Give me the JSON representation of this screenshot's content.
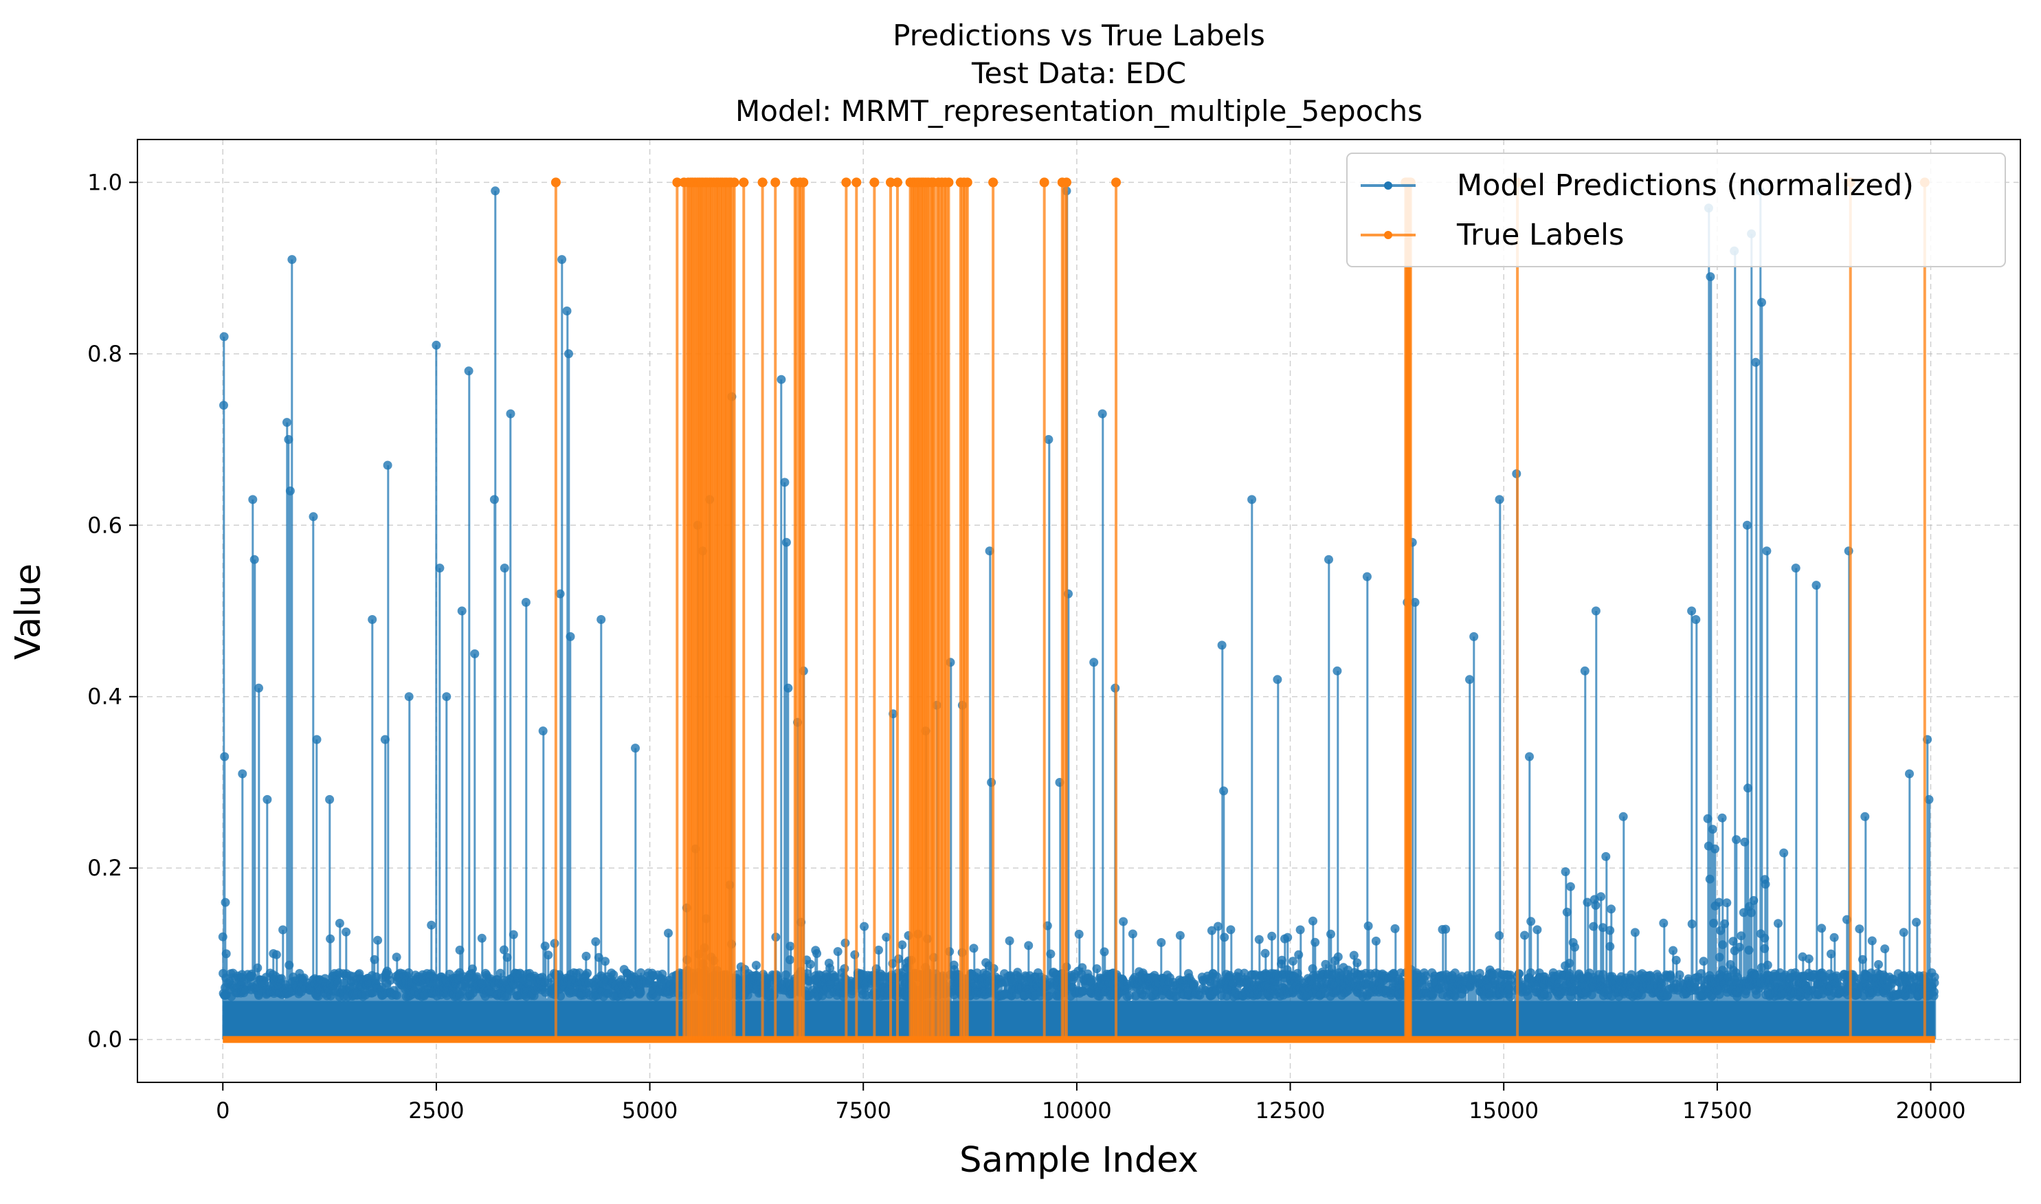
{
  "chart_data": {
    "type": "line",
    "title_lines": [
      "Predictions vs True Labels",
      "Test Data: EDC",
      "Model: MRMT_representation_multiple_5epochs"
    ],
    "xlabel": "Sample Index",
    "ylabel": "Value",
    "xlim": [
      -1000,
      21050
    ],
    "ylim": [
      -0.05,
      1.05
    ],
    "x_ticks": [
      0,
      2500,
      5000,
      7500,
      10000,
      12500,
      15000,
      17500,
      20000
    ],
    "x_tick_labels": [
      "0",
      "2500",
      "5000",
      "7500",
      "10000",
      "12500",
      "15000",
      "17500",
      "20000"
    ],
    "y_ticks": [
      0.0,
      0.2,
      0.4,
      0.6,
      0.8,
      1.0
    ],
    "y_tick_labels": [
      "0.0",
      "0.2",
      "0.4",
      "0.6",
      "0.8",
      "1.0"
    ],
    "grid": true,
    "legend_position": "top-right",
    "series": [
      {
        "name": "Model Predictions (normalized)",
        "color": "#1f77b4",
        "n_samples": 20050,
        "baseline_range": [
          0.0,
          0.06
        ],
        "peaks": [
          [
            10,
            0.74
          ],
          [
            15,
            0.82
          ],
          [
            20,
            0.33
          ],
          [
            30,
            0.16
          ],
          [
            40,
            0.1
          ],
          [
            230,
            0.31
          ],
          [
            350,
            0.63
          ],
          [
            370,
            0.56
          ],
          [
            420,
            0.41
          ],
          [
            520,
            0.28
          ],
          [
            750,
            0.72
          ],
          [
            770,
            0.7
          ],
          [
            790,
            0.64
          ],
          [
            810,
            0.91
          ],
          [
            1060,
            0.61
          ],
          [
            1100,
            0.35
          ],
          [
            1250,
            0.28
          ],
          [
            1750,
            0.49
          ],
          [
            1930,
            0.67
          ],
          [
            1900,
            0.35
          ],
          [
            2180,
            0.4
          ],
          [
            2500,
            0.81
          ],
          [
            2540,
            0.55
          ],
          [
            2620,
            0.4
          ],
          [
            2800,
            0.5
          ],
          [
            2880,
            0.78
          ],
          [
            2950,
            0.45
          ],
          [
            3180,
            0.63
          ],
          [
            3190,
            0.99
          ],
          [
            3300,
            0.55
          ],
          [
            3370,
            0.73
          ],
          [
            3550,
            0.51
          ],
          [
            3750,
            0.36
          ],
          [
            3950,
            0.52
          ],
          [
            3970,
            0.91
          ],
          [
            4030,
            0.85
          ],
          [
            4050,
            0.8
          ],
          [
            4070,
            0.47
          ],
          [
            4430,
            0.49
          ],
          [
            4830,
            0.34
          ],
          [
            5560,
            0.6
          ],
          [
            5620,
            0.57
          ],
          [
            5700,
            0.63
          ],
          [
            5960,
            0.75
          ],
          [
            6540,
            0.77
          ],
          [
            6580,
            0.65
          ],
          [
            6600,
            0.58
          ],
          [
            6620,
            0.41
          ],
          [
            6730,
            0.37
          ],
          [
            6800,
            0.43
          ],
          [
            7850,
            0.38
          ],
          [
            8230,
            0.36
          ],
          [
            8360,
            0.39
          ],
          [
            8520,
            0.44
          ],
          [
            8660,
            0.39
          ],
          [
            8980,
            0.57
          ],
          [
            9000,
            0.3
          ],
          [
            9670,
            0.7
          ],
          [
            9800,
            0.3
          ],
          [
            9880,
            0.99
          ],
          [
            9900,
            0.52
          ],
          [
            10200,
            0.44
          ],
          [
            10300,
            0.73
          ],
          [
            10450,
            0.41
          ],
          [
            11700,
            0.46
          ],
          [
            11720,
            0.29
          ],
          [
            12050,
            0.63
          ],
          [
            12350,
            0.42
          ],
          [
            12950,
            0.56
          ],
          [
            13050,
            0.43
          ],
          [
            13400,
            0.54
          ],
          [
            13870,
            0.51
          ],
          [
            13930,
            0.58
          ],
          [
            13960,
            0.51
          ],
          [
            14600,
            0.42
          ],
          [
            14650,
            0.47
          ],
          [
            14950,
            0.63
          ],
          [
            15150,
            0.66
          ],
          [
            15300,
            0.33
          ],
          [
            15950,
            0.43
          ],
          [
            16080,
            0.5
          ],
          [
            16400,
            0.26
          ],
          [
            17200,
            0.5
          ],
          [
            17250,
            0.49
          ],
          [
            17400,
            0.97
          ],
          [
            17420,
            0.89
          ],
          [
            17700,
            0.92
          ],
          [
            17850,
            0.6
          ],
          [
            17900,
            0.94
          ],
          [
            17950,
            0.79
          ],
          [
            18000,
            0.99
          ],
          [
            18020,
            0.86
          ],
          [
            18080,
            0.57
          ],
          [
            18420,
            0.55
          ],
          [
            18660,
            0.53
          ],
          [
            19040,
            0.57
          ],
          [
            19230,
            0.26
          ],
          [
            19750,
            0.31
          ],
          [
            19960,
            0.35
          ],
          [
            19980,
            0.28
          ]
        ],
        "dense_regions": [
          [
            5400,
            6000,
            0.28
          ],
          [
            6000,
            8800,
            0.12
          ],
          [
            8800,
            10500,
            0.1
          ],
          [
            12000,
            13500,
            0.15
          ],
          [
            15600,
            16300,
            0.25
          ],
          [
            17300,
            18300,
            0.3
          ]
        ]
      },
      {
        "name": "True Labels",
        "color": "#ff7f0e",
        "values_description_binary": true,
        "positive_indices": [
          3900,
          5320,
          5400,
          5450,
          5480,
          5500,
          5530,
          5560,
          5580,
          5600,
          5620,
          5650,
          5670,
          5700,
          5720,
          5750,
          5780,
          5800,
          5830,
          5850,
          5880,
          5900,
          5930,
          5950,
          5990,
          6100,
          6320,
          6470,
          6700,
          6760,
          6800,
          7300,
          7420,
          7630,
          7820,
          7900,
          8050,
          8080,
          8100,
          8130,
          8150,
          8180,
          8200,
          8230,
          8260,
          8300,
          8320,
          8380,
          8420,
          8460,
          8500,
          8640,
          8680,
          8720,
          9020,
          9620,
          9830,
          9880,
          10460,
          13850,
          13860,
          13870,
          13880,
          13890,
          13900,
          13910,
          15160,
          19060,
          19930
        ]
      }
    ]
  }
}
